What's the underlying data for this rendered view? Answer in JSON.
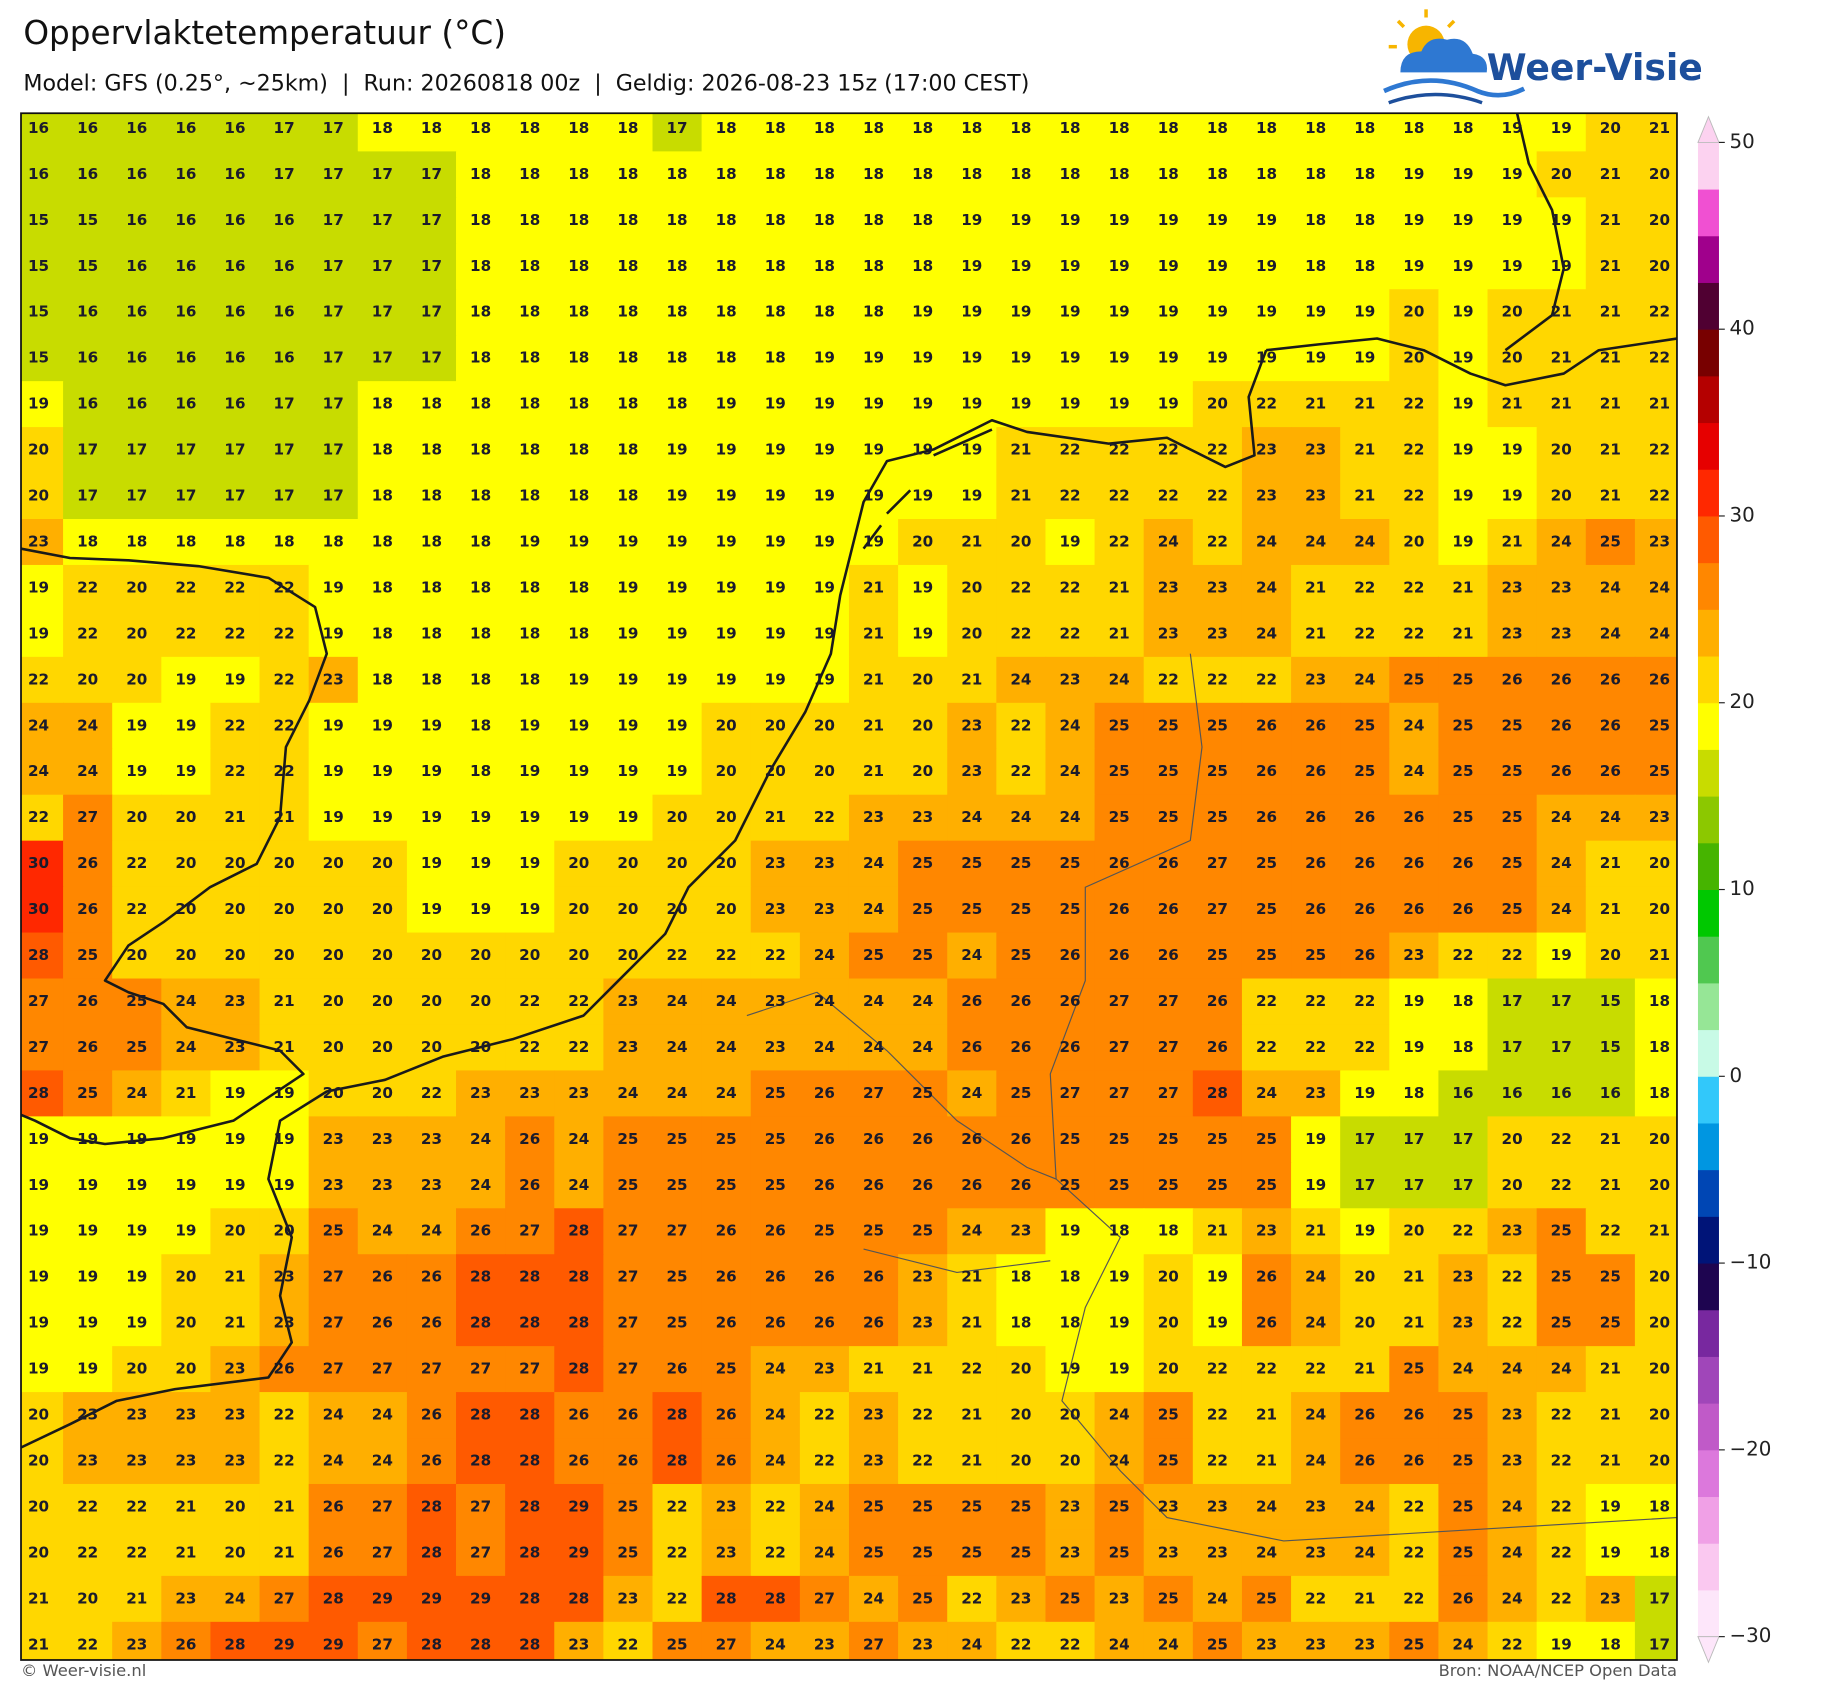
{
  "header": {
    "title": "Oppervlaktetemperatuur (°C)",
    "subtitle": "Model: GFS (0.25°, ~25km)  |  Run: 20260818 00z  |  Geldig: 2026-08-23 15z (17:00 CEST)"
  },
  "logo": {
    "text": "Weer-Visie"
  },
  "map": {
    "grid": [
      [
        16,
        16,
        16,
        16,
        16,
        17,
        17,
        18,
        18,
        18,
        18,
        18,
        18,
        17,
        18,
        18,
        18,
        18,
        18,
        18,
        18,
        18,
        18,
        18,
        18,
        18,
        18,
        18,
        18,
        18,
        19,
        19,
        20,
        21
      ],
      [
        16,
        16,
        16,
        16,
        16,
        17,
        17,
        17,
        17,
        18,
        18,
        18,
        18,
        18,
        18,
        18,
        18,
        18,
        18,
        18,
        18,
        18,
        18,
        18,
        18,
        18,
        18,
        18,
        19,
        19,
        19,
        20,
        21,
        20
      ],
      [
        15,
        15,
        16,
        16,
        16,
        16,
        17,
        17,
        17,
        18,
        18,
        18,
        18,
        18,
        18,
        18,
        18,
        18,
        18,
        19,
        19,
        19,
        19,
        19,
        19,
        19,
        18,
        18,
        19,
        19,
        19,
        19,
        21,
        20
      ],
      [
        15,
        15,
        16,
        16,
        16,
        16,
        17,
        17,
        17,
        18,
        18,
        18,
        18,
        18,
        18,
        18,
        18,
        18,
        18,
        19,
        19,
        19,
        19,
        19,
        19,
        19,
        18,
        18,
        19,
        19,
        19,
        19,
        21,
        20
      ],
      [
        15,
        16,
        16,
        16,
        16,
        16,
        17,
        17,
        17,
        18,
        18,
        18,
        18,
        18,
        18,
        18,
        18,
        18,
        19,
        19,
        19,
        19,
        19,
        19,
        19,
        19,
        19,
        19,
        20,
        19,
        20,
        21,
        21,
        22
      ],
      [
        15,
        16,
        16,
        16,
        16,
        16,
        17,
        17,
        17,
        18,
        18,
        18,
        18,
        18,
        18,
        18,
        19,
        19,
        19,
        19,
        19,
        19,
        19,
        19,
        19,
        19,
        19,
        19,
        20,
        19,
        20,
        21,
        21,
        22
      ],
      [
        19,
        16,
        16,
        16,
        16,
        17,
        17,
        18,
        18,
        18,
        18,
        18,
        18,
        18,
        19,
        19,
        19,
        19,
        19,
        19,
        19,
        19,
        19,
        19,
        20,
        22,
        21,
        21,
        22,
        19,
        21,
        21,
        21,
        21
      ],
      [
        20,
        17,
        17,
        17,
        17,
        17,
        17,
        18,
        18,
        18,
        18,
        18,
        18,
        19,
        19,
        19,
        19,
        19,
        19,
        19,
        21,
        22,
        22,
        22,
        22,
        23,
        23,
        21,
        22,
        19,
        19,
        20,
        21,
        22
      ],
      [
        20,
        17,
        17,
        17,
        17,
        17,
        17,
        18,
        18,
        18,
        18,
        18,
        18,
        19,
        19,
        19,
        19,
        19,
        19,
        19,
        21,
        22,
        22,
        22,
        22,
        23,
        23,
        21,
        22,
        19,
        19,
        20,
        21,
        22
      ],
      [
        23,
        18,
        18,
        18,
        18,
        18,
        18,
        18,
        18,
        18,
        19,
        19,
        19,
        19,
        19,
        19,
        19,
        19,
        20,
        21,
        20,
        19,
        22,
        24,
        22,
        24,
        24,
        24,
        20,
        19,
        21,
        24,
        25,
        23
      ],
      [
        19,
        22,
        20,
        22,
        22,
        22,
        19,
        18,
        18,
        18,
        18,
        18,
        19,
        19,
        19,
        19,
        19,
        21,
        19,
        20,
        22,
        22,
        21,
        23,
        23,
        24,
        21,
        22,
        22,
        21,
        23,
        23,
        24,
        24
      ],
      [
        19,
        22,
        20,
        22,
        22,
        22,
        19,
        18,
        18,
        18,
        18,
        18,
        19,
        19,
        19,
        19,
        19,
        21,
        19,
        20,
        22,
        22,
        21,
        23,
        23,
        24,
        21,
        22,
        22,
        21,
        23,
        23,
        24,
        24
      ],
      [
        22,
        20,
        20,
        19,
        19,
        22,
        23,
        18,
        18,
        18,
        18,
        19,
        19,
        19,
        19,
        19,
        19,
        21,
        20,
        21,
        24,
        23,
        24,
        22,
        22,
        22,
        23,
        24,
        25,
        25,
        26,
        26,
        26,
        26
      ],
      [
        24,
        24,
        19,
        19,
        22,
        22,
        19,
        19,
        19,
        18,
        19,
        19,
        19,
        19,
        20,
        20,
        20,
        21,
        20,
        23,
        22,
        24,
        25,
        25,
        25,
        26,
        26,
        25,
        24,
        25,
        25,
        26,
        26,
        25
      ],
      [
        24,
        24,
        19,
        19,
        22,
        22,
        19,
        19,
        19,
        18,
        19,
        19,
        19,
        19,
        20,
        20,
        20,
        21,
        20,
        23,
        22,
        24,
        25,
        25,
        25,
        26,
        26,
        25,
        24,
        25,
        25,
        26,
        26,
        25
      ],
      [
        22,
        27,
        20,
        20,
        21,
        21,
        19,
        19,
        19,
        19,
        19,
        19,
        19,
        20,
        20,
        21,
        22,
        23,
        23,
        24,
        24,
        24,
        25,
        25,
        25,
        26,
        26,
        26,
        26,
        25,
        25,
        24,
        24,
        23
      ],
      [
        30,
        26,
        22,
        20,
        20,
        20,
        20,
        20,
        19,
        19,
        19,
        20,
        20,
        20,
        20,
        23,
        23,
        24,
        25,
        25,
        25,
        25,
        26,
        26,
        27,
        25,
        26,
        26,
        26,
        26,
        25,
        24,
        21,
        20
      ],
      [
        30,
        26,
        22,
        20,
        20,
        20,
        20,
        20,
        19,
        19,
        19,
        20,
        20,
        20,
        20,
        23,
        23,
        24,
        25,
        25,
        25,
        25,
        26,
        26,
        27,
        25,
        26,
        26,
        26,
        26,
        25,
        24,
        21,
        20
      ],
      [
        28,
        25,
        20,
        20,
        20,
        20,
        20,
        20,
        20,
        20,
        20,
        20,
        20,
        22,
        22,
        22,
        24,
        25,
        25,
        24,
        25,
        26,
        26,
        26,
        25,
        25,
        25,
        26,
        23,
        22,
        22,
        19,
        20,
        21
      ],
      [
        27,
        26,
        25,
        24,
        23,
        21,
        20,
        20,
        20,
        20,
        22,
        22,
        23,
        24,
        24,
        23,
        24,
        24,
        24,
        26,
        26,
        26,
        27,
        27,
        26,
        22,
        22,
        22,
        19,
        18,
        17,
        17,
        15,
        18
      ],
      [
        27,
        26,
        25,
        24,
        23,
        21,
        20,
        20,
        20,
        20,
        22,
        22,
        23,
        24,
        24,
        23,
        24,
        24,
        24,
        26,
        26,
        26,
        27,
        27,
        26,
        22,
        22,
        22,
        19,
        18,
        17,
        17,
        15,
        18
      ],
      [
        28,
        25,
        24,
        21,
        19,
        19,
        20,
        20,
        22,
        23,
        23,
        23,
        24,
        24,
        24,
        25,
        26,
        27,
        25,
        24,
        25,
        27,
        27,
        27,
        28,
        24,
        23,
        19,
        18,
        16,
        16,
        16,
        16,
        18
      ],
      [
        19,
        19,
        19,
        19,
        19,
        19,
        23,
        23,
        23,
        24,
        26,
        24,
        25,
        25,
        25,
        25,
        26,
        26,
        26,
        26,
        26,
        25,
        25,
        25,
        25,
        25,
        19,
        17,
        17,
        17,
        20,
        22,
        21,
        20
      ],
      [
        19,
        19,
        19,
        19,
        19,
        19,
        23,
        23,
        23,
        24,
        26,
        24,
        25,
        25,
        25,
        25,
        26,
        26,
        26,
        26,
        26,
        25,
        25,
        25,
        25,
        25,
        19,
        17,
        17,
        17,
        20,
        22,
        21,
        20
      ],
      [
        19,
        19,
        19,
        19,
        20,
        20,
        25,
        24,
        24,
        26,
        27,
        28,
        27,
        27,
        26,
        26,
        25,
        25,
        25,
        24,
        23,
        19,
        18,
        18,
        21,
        23,
        21,
        19,
        20,
        22,
        23,
        25,
        22,
        21
      ],
      [
        19,
        19,
        19,
        20,
        21,
        23,
        27,
        26,
        26,
        28,
        28,
        28,
        27,
        25,
        26,
        26,
        26,
        26,
        23,
        21,
        18,
        18,
        19,
        20,
        19,
        26,
        24,
        20,
        21,
        23,
        22,
        25,
        25,
        20
      ],
      [
        19,
        19,
        19,
        20,
        21,
        23,
        27,
        26,
        26,
        28,
        28,
        28,
        27,
        25,
        26,
        26,
        26,
        26,
        23,
        21,
        18,
        18,
        19,
        20,
        19,
        26,
        24,
        20,
        21,
        23,
        22,
        25,
        25,
        20
      ],
      [
        19,
        19,
        20,
        20,
        23,
        26,
        27,
        27,
        27,
        27,
        27,
        28,
        27,
        26,
        25,
        24,
        23,
        21,
        21,
        22,
        20,
        19,
        19,
        20,
        22,
        22,
        22,
        21,
        25,
        24,
        24,
        24,
        21,
        20
      ],
      [
        20,
        23,
        23,
        23,
        23,
        22,
        24,
        24,
        26,
        28,
        28,
        26,
        26,
        28,
        26,
        24,
        22,
        23,
        22,
        21,
        20,
        20,
        24,
        25,
        22,
        21,
        24,
        26,
        26,
        25,
        23,
        22,
        21,
        20
      ],
      [
        20,
        23,
        23,
        23,
        23,
        22,
        24,
        24,
        26,
        28,
        28,
        26,
        26,
        28,
        26,
        24,
        22,
        23,
        22,
        21,
        20,
        20,
        24,
        25,
        22,
        21,
        24,
        26,
        26,
        25,
        23,
        22,
        21,
        20
      ],
      [
        20,
        22,
        22,
        21,
        20,
        21,
        26,
        27,
        28,
        27,
        28,
        29,
        25,
        22,
        23,
        22,
        24,
        25,
        25,
        25,
        25,
        23,
        25,
        23,
        23,
        24,
        23,
        24,
        22,
        25,
        24,
        22,
        19,
        18
      ],
      [
        20,
        22,
        22,
        21,
        20,
        21,
        26,
        27,
        28,
        27,
        28,
        29,
        25,
        22,
        23,
        22,
        24,
        25,
        25,
        25,
        25,
        23,
        25,
        23,
        23,
        24,
        23,
        24,
        22,
        25,
        24,
        22,
        19,
        18
      ],
      [
        21,
        20,
        21,
        23,
        24,
        27,
        28,
        29,
        29,
        29,
        28,
        28,
        23,
        22,
        28,
        28,
        27,
        24,
        25,
        22,
        23,
        25,
        23,
        25,
        24,
        25,
        22,
        21,
        22,
        26,
        24,
        22,
        23,
        17
      ],
      [
        21,
        22,
        23,
        26,
        28,
        29,
        29,
        27,
        28,
        28,
        28,
        23,
        22,
        25,
        27,
        24,
        23,
        27,
        23,
        24,
        22,
        22,
        24,
        24,
        25,
        23,
        23,
        23,
        25,
        24,
        22,
        19,
        18,
        17
      ]
    ],
    "colorbar": {
      "range": [
        -30,
        50
      ],
      "colors": [
        "#fde6fa",
        "#fac8f0",
        "#f0a0e6",
        "#dc78dc",
        "#c05ac8",
        "#a046b9",
        "#78289f",
        "#1e0550",
        "#001478",
        "#0046b4",
        "#0096e1",
        "#32c8fa",
        "#c8fae6",
        "#96e696",
        "#50c850",
        "#00c800",
        "#46b400",
        "#8cc800",
        "#c8dc00",
        "#ffff00",
        "#ffd700",
        "#ffaf00",
        "#ff8700",
        "#ff5a00",
        "#ff2800",
        "#e60000",
        "#b40000",
        "#780000",
        "#500032",
        "#a0008c",
        "#f050d2",
        "#fcd2f0"
      ],
      "ticks": [
        50,
        40,
        30,
        20,
        10,
        0,
        {
          "value": -10,
          "label": "−10"
        },
        {
          "value": -20,
          "label": "−20"
        },
        {
          "value": -30,
          "label": "−30"
        }
      ]
    }
  },
  "footer": {
    "left": "© Weer-visie.nl",
    "right": "Bron: NOAA/NCEP Open Data"
  }
}
